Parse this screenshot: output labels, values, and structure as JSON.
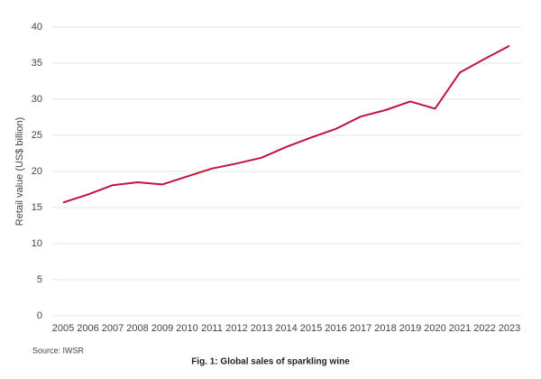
{
  "chart_data": {
    "type": "line",
    "title": "Fig. 1: Global sales of sparkling wine",
    "source": "Source: IWSR",
    "y_label": "Retail value (US$ billion)",
    "categories": [
      "2005",
      "2006",
      "2007",
      "2008",
      "2009",
      "2010",
      "2011",
      "2012",
      "2013",
      "2014",
      "2015",
      "2016",
      "2017",
      "2018",
      "2019",
      "2020",
      "2021",
      "2022",
      "2023"
    ],
    "values": [
      15.7,
      16.8,
      18.1,
      18.5,
      18.2,
      19.3,
      20.4,
      21.1,
      21.9,
      23.4,
      24.7,
      25.9,
      27.6,
      28.5,
      29.7,
      28.7,
      33.7,
      35.6,
      37.4
    ],
    "color": "#c0143c",
    "ylim": [
      0,
      40
    ],
    "yticks": [
      0,
      5,
      10,
      15,
      20,
      25,
      30,
      35,
      40
    ],
    "grid": true
  }
}
